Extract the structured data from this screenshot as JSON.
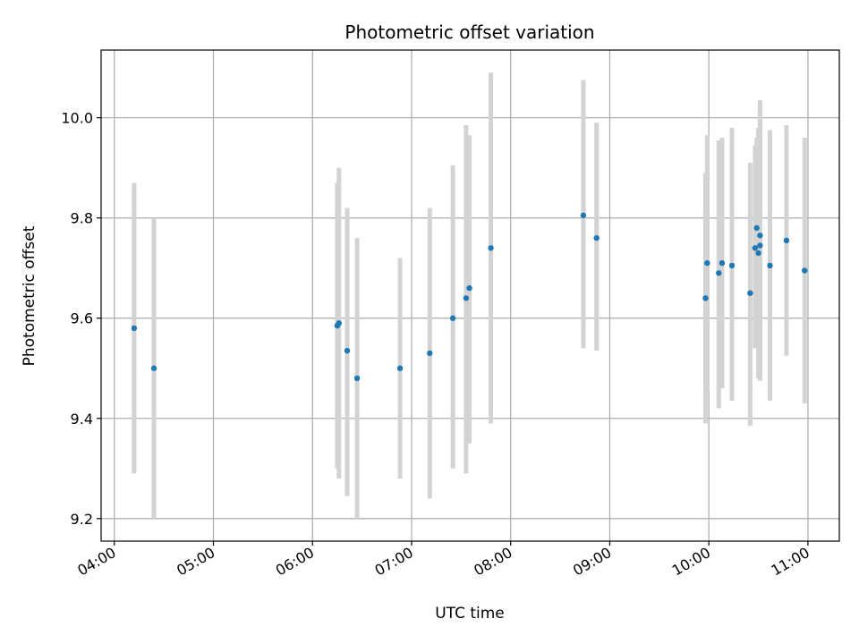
{
  "chart_data": {
    "type": "scatter",
    "title": "Photometric offset variation",
    "xlabel": "UTC time",
    "ylabel": "Photometric offset",
    "x_tick_labels": [
      "04:00",
      "05:00",
      "06:00",
      "07:00",
      "08:00",
      "09:00",
      "10:00",
      "11:00"
    ],
    "y_tick_labels": [
      "9.2",
      "9.4",
      "9.6",
      "9.8",
      "10.0"
    ],
    "y_ticks": [
      9.2,
      9.4,
      9.6,
      9.8,
      10.0
    ],
    "xlim": [
      "03:52",
      "11:19"
    ],
    "ylim": [
      9.155,
      10.135
    ],
    "grid": true,
    "colors": {
      "point": "#1f77b4",
      "errorbar": "#d3d3d3",
      "grid": "#b0b0b0"
    },
    "points": [
      {
        "time": "04:12",
        "value": 9.58,
        "lo": 9.29,
        "hi": 9.87
      },
      {
        "time": "04:24",
        "value": 9.5,
        "lo": 9.2,
        "hi": 9.8
      },
      {
        "time": "06:15",
        "value": 9.585,
        "lo": 9.3,
        "hi": 9.87
      },
      {
        "time": "06:16",
        "value": 9.59,
        "lo": 9.28,
        "hi": 9.9
      },
      {
        "time": "06:21",
        "value": 9.535,
        "lo": 9.245,
        "hi": 9.82
      },
      {
        "time": "06:27",
        "value": 9.48,
        "lo": 9.2,
        "hi": 9.76
      },
      {
        "time": "06:53",
        "value": 9.5,
        "lo": 9.28,
        "hi": 9.72
      },
      {
        "time": "07:11",
        "value": 9.53,
        "lo": 9.24,
        "hi": 9.82
      },
      {
        "time": "07:25",
        "value": 9.6,
        "lo": 9.3,
        "hi": 9.905
      },
      {
        "time": "07:33",
        "value": 9.64,
        "lo": 9.29,
        "hi": 9.985
      },
      {
        "time": "07:35",
        "value": 9.66,
        "lo": 9.35,
        "hi": 9.965
      },
      {
        "time": "07:48",
        "value": 9.74,
        "lo": 9.39,
        "hi": 10.09
      },
      {
        "time": "08:44",
        "value": 9.805,
        "lo": 9.54,
        "hi": 10.075
      },
      {
        "time": "08:52",
        "value": 9.76,
        "lo": 9.535,
        "hi": 9.99
      },
      {
        "time": "09:58",
        "value": 9.64,
        "lo": 9.39,
        "hi": 9.89
      },
      {
        "time": "09:59",
        "value": 9.71,
        "lo": 9.455,
        "hi": 9.965
      },
      {
        "time": "10:06",
        "value": 9.69,
        "lo": 9.42,
        "hi": 9.955
      },
      {
        "time": "10:08",
        "value": 9.71,
        "lo": 9.46,
        "hi": 9.96
      },
      {
        "time": "10:14",
        "value": 9.705,
        "lo": 9.435,
        "hi": 9.98
      },
      {
        "time": "10:25",
        "value": 9.65,
        "lo": 9.385,
        "hi": 9.91
      },
      {
        "time": "10:28",
        "value": 9.74,
        "lo": 9.54,
        "hi": 9.945
      },
      {
        "time": "10:29",
        "value": 9.78,
        "lo": 9.6,
        "hi": 9.96
      },
      {
        "time": "10:30",
        "value": 9.73,
        "lo": 9.48,
        "hi": 9.98
      },
      {
        "time": "10:31",
        "value": 9.765,
        "lo": 9.49,
        "hi": 10.035
      },
      {
        "time": "10:31",
        "value": 9.745,
        "lo": 9.475,
        "hi": 10.01
      },
      {
        "time": "10:37",
        "value": 9.705,
        "lo": 9.435,
        "hi": 9.975
      },
      {
        "time": "10:47",
        "value": 9.755,
        "lo": 9.525,
        "hi": 9.985
      },
      {
        "time": "10:58",
        "value": 9.695,
        "lo": 9.43,
        "hi": 9.96
      }
    ]
  }
}
